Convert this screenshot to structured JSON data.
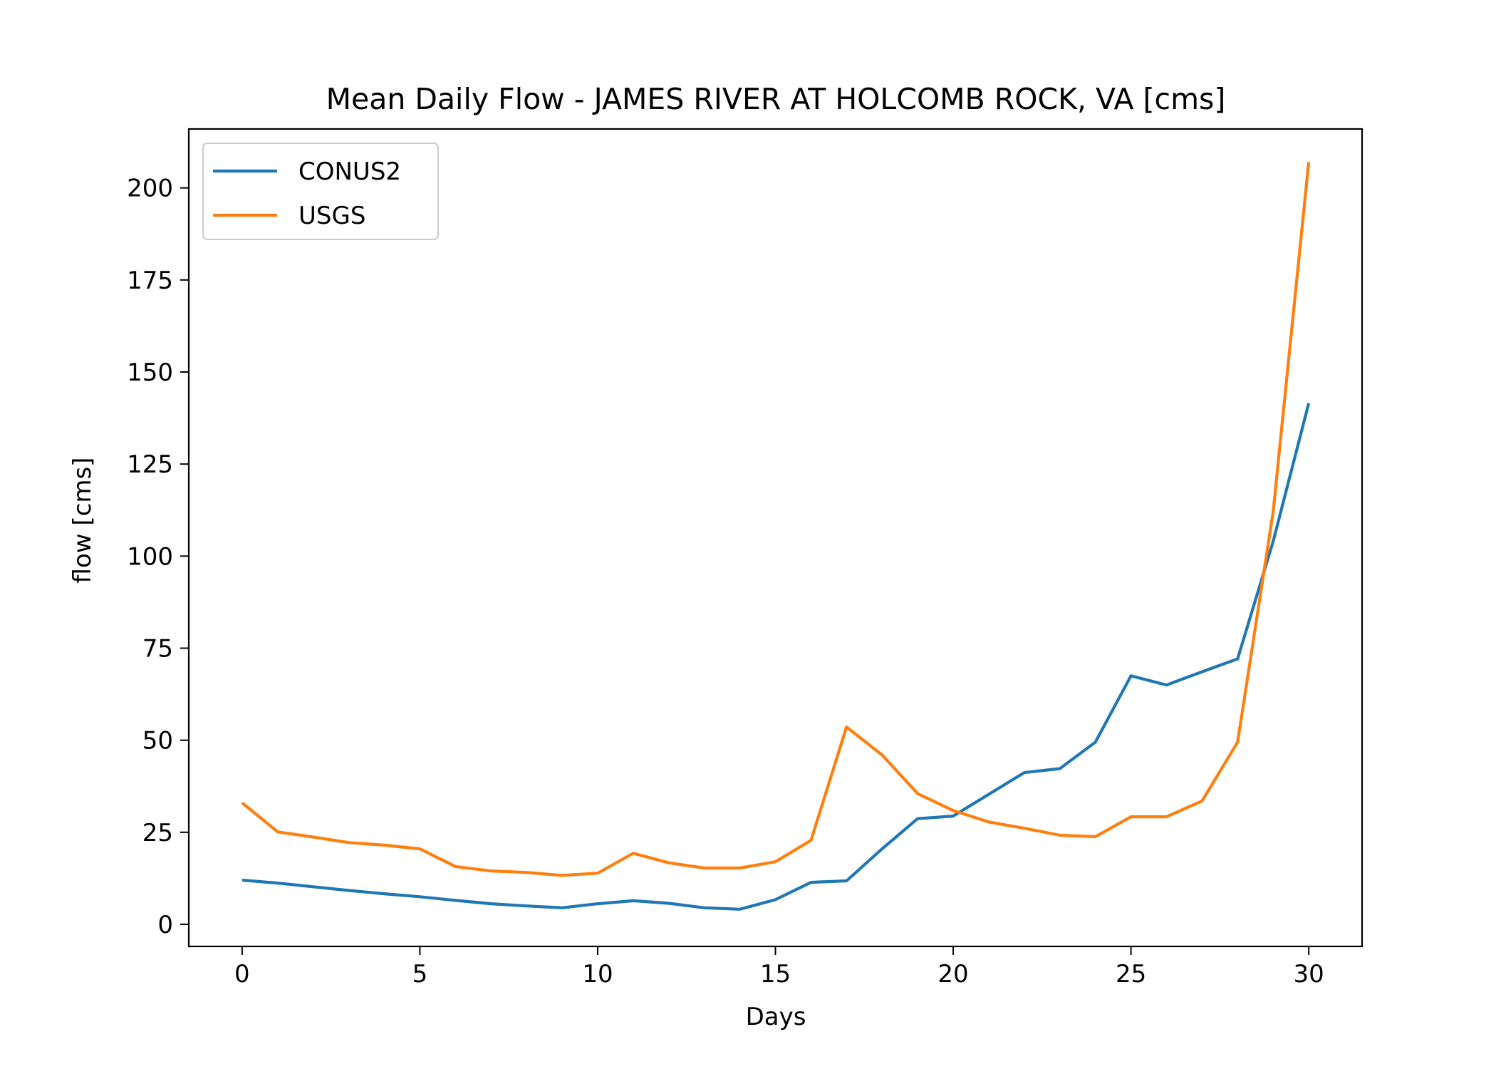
{
  "chart_data": {
    "type": "line",
    "title": "Mean Daily Flow - JAMES RIVER AT HOLCOMB ROCK, VA [cms]",
    "xlabel": "Days",
    "ylabel": "flow [cms]",
    "xlim": [
      -1.5,
      31.5
    ],
    "ylim": [
      -6,
      216
    ],
    "xticks": [
      0,
      5,
      10,
      15,
      20,
      25,
      30
    ],
    "yticks": [
      0,
      25,
      50,
      75,
      100,
      125,
      150,
      175,
      200
    ],
    "grid": false,
    "legend_position": "top-left",
    "x": [
      0,
      1,
      2,
      3,
      4,
      5,
      6,
      7,
      8,
      9,
      10,
      11,
      12,
      13,
      14,
      15,
      16,
      17,
      18,
      19,
      20,
      21,
      22,
      23,
      24,
      25,
      26,
      27,
      28,
      29,
      30
    ],
    "series": [
      {
        "name": "CONUS2",
        "color": "#1f77b4",
        "values": [
          12.0,
          11.2,
          10.2,
          9.2,
          8.3,
          7.5,
          6.5,
          5.6,
          5.0,
          4.5,
          5.6,
          6.4,
          5.7,
          4.5,
          4.1,
          6.7,
          11.4,
          11.8,
          20.5,
          28.7,
          29.4,
          35.3,
          41.2,
          42.3,
          49.5,
          67.5,
          65.0,
          68.6,
          72.1,
          104.0,
          141.5
        ]
      },
      {
        "name": "USGS",
        "color": "#ff7f0e",
        "values": [
          33.0,
          25.1,
          23.7,
          22.2,
          21.5,
          20.5,
          15.7,
          14.5,
          14.1,
          13.3,
          13.9,
          19.3,
          16.7,
          15.3,
          15.3,
          17.0,
          22.8,
          53.6,
          46.0,
          35.5,
          30.9,
          27.8,
          26.1,
          24.2,
          23.8,
          29.2,
          29.2,
          33.5,
          49.5,
          112.0,
          207.0
        ]
      }
    ]
  }
}
